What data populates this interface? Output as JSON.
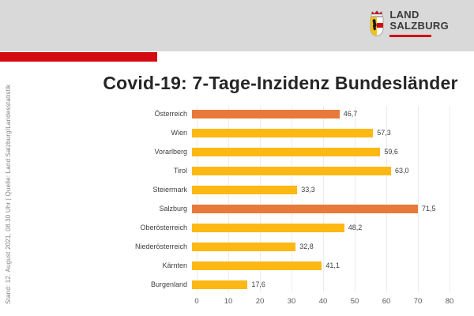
{
  "header": {
    "logo_line1": "LAND",
    "logo_line2": "SALZBURG"
  },
  "colors": {
    "header_gray": "#d9d9d9",
    "brand_red": "#d20a11",
    "bar_yellow": "#fdb813",
    "bar_orange": "#e8793a",
    "gridline": "#ececec",
    "text_dark": "#404040"
  },
  "side_note": "Stand: 12. August  2021, 08.30 Uhr | Quelle: Land Salzburg/Landesstatistik",
  "title": "Covid-19: 7-Tage-Inzidenz Bundesländer",
  "chart_data": {
    "type": "bar",
    "orientation": "horizontal",
    "title": "Covid-19: 7-Tage-Inzidenz Bundesländer",
    "categories": [
      "Österreich",
      "Wien",
      "Vorarlberg",
      "Tirol",
      "Steiermark",
      "Salzburg",
      "Oberösterreich",
      "Niederösterreich",
      "Kärnten",
      "Burgenland"
    ],
    "values": [
      46.7,
      57.3,
      59.6,
      63.0,
      33.3,
      71.5,
      48.2,
      32.8,
      41.1,
      17.6
    ],
    "value_labels": [
      "46,7",
      "57,3",
      "59,6",
      "63,0",
      "33,3",
      "71,5",
      "48,2",
      "32,8",
      "41,1",
      "17,6"
    ],
    "highlight_indices": [
      0,
      5
    ],
    "bar_color_default": "#fdb813",
    "bar_color_highlight": "#e8793a",
    "xlim": [
      0,
      80
    ],
    "x_ticks": [
      0,
      10,
      20,
      30,
      40,
      50,
      60,
      70,
      80
    ],
    "grid": true,
    "legend": false,
    "xlabel": "",
    "ylabel": ""
  }
}
